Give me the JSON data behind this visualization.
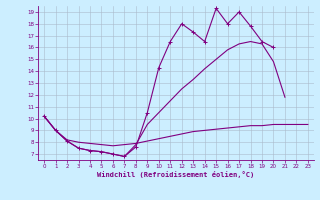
{
  "xlabel": "Windchill (Refroidissement éolien,°C)",
  "background_color": "#cceeff",
  "line_color": "#800080",
  "grid_color": "#aabbcc",
  "xlim": [
    -0.5,
    23.5
  ],
  "ylim": [
    6.5,
    19.5
  ],
  "xticks": [
    0,
    1,
    2,
    3,
    4,
    5,
    6,
    7,
    8,
    9,
    10,
    11,
    12,
    13,
    14,
    15,
    16,
    17,
    18,
    19,
    20,
    21,
    22,
    23
  ],
  "yticks": [
    7,
    8,
    9,
    10,
    11,
    12,
    13,
    14,
    15,
    16,
    17,
    18,
    19
  ],
  "line1_y": [
    10.2,
    9.0,
    8.1,
    7.5,
    7.3,
    7.2,
    7.0,
    6.8,
    7.6,
    10.5,
    14.3,
    16.5,
    18.0,
    17.3,
    16.5,
    19.3,
    18.0,
    19.0,
    17.8,
    16.5,
    16.0,
    null,
    null,
    null
  ],
  "line2_y": [
    10.2,
    9.0,
    8.1,
    7.5,
    7.3,
    7.2,
    7.0,
    6.8,
    7.8,
    9.5,
    10.5,
    11.5,
    12.5,
    13.3,
    14.2,
    15.0,
    15.8,
    16.3,
    16.5,
    16.3,
    14.8,
    11.8,
    null,
    null
  ],
  "line3_y": [
    10.2,
    9.0,
    8.2,
    8.0,
    7.9,
    7.8,
    7.7,
    7.8,
    7.9,
    8.1,
    8.3,
    8.5,
    8.7,
    8.9,
    9.0,
    9.1,
    9.2,
    9.3,
    9.4,
    9.4,
    9.5,
    9.5,
    9.5,
    9.5
  ]
}
